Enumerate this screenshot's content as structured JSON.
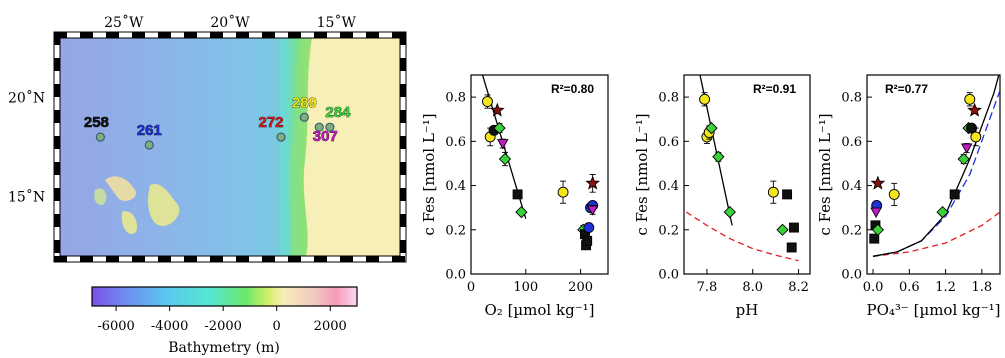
{
  "map": {
    "lon_ticks": [
      "25˚W",
      "20˚W",
      "15˚W"
    ],
    "lat_ticks": [
      "20˚N",
      "15˚N"
    ],
    "stations": [
      {
        "name": "258",
        "color": "#111111",
        "lon": -26.1,
        "lat": 18.0
      },
      {
        "name": "261",
        "color": "#1f2fd6",
        "lon": -23.8,
        "lat": 17.6
      },
      {
        "name": "272",
        "color": "#d61a1a",
        "lon": -17.6,
        "lat": 18.0
      },
      {
        "name": "289",
        "color": "#f2e21a",
        "lon": -16.5,
        "lat": 19.0
      },
      {
        "name": "307",
        "color": "#c21ac2",
        "lon": -15.8,
        "lat": 18.5
      },
      {
        "name": "284",
        "color": "#3ad23a",
        "lon": -15.3,
        "lat": 18.5
      }
    ],
    "colorbar": {
      "ticks": [
        "-6000",
        "-4000",
        "-2000",
        "0",
        "2000"
      ],
      "label": "Bathymetry (m)",
      "min": -6900,
      "max": 3000
    }
  },
  "chart_data": [
    {
      "type": "scatter",
      "xlabel": "O₂ [µmol kg⁻¹]",
      "ylabel": "c Fes [nmol L⁻¹]",
      "r2": "R²=0.80",
      "xlim": [
        0,
        250
      ],
      "ylim": [
        0,
        0.9
      ],
      "xticks": [
        "0",
        "100",
        "200"
      ],
      "yticks": [
        "0.0",
        "0.2",
        "0.4",
        "0.6",
        "0.8"
      ],
      "points": [
        {
          "x": 30,
          "y": 0.78,
          "s": "circle",
          "c": "#f5e61c",
          "e": 0.03
        },
        {
          "x": 35,
          "y": 0.62,
          "s": "circle",
          "c": "#f5e61c",
          "e": 0.04
        },
        {
          "x": 42,
          "y": 0.65,
          "s": "circle",
          "c": "#111111",
          "e": 0.02
        },
        {
          "x": 48,
          "y": 0.74,
          "s": "star",
          "c": "#8b1010",
          "e": 0
        },
        {
          "x": 52,
          "y": 0.66,
          "s": "diamond",
          "c": "#3ad23a",
          "e": 0.02
        },
        {
          "x": 58,
          "y": 0.59,
          "s": "tri",
          "c": "#c21ac2",
          "e": 0.02
        },
        {
          "x": 62,
          "y": 0.52,
          "s": "diamond",
          "c": "#3ad23a",
          "e": 0.03
        },
        {
          "x": 85,
          "y": 0.36,
          "s": "square",
          "c": "#111111",
          "e": 0
        },
        {
          "x": 92,
          "y": 0.28,
          "s": "diamond",
          "c": "#3ad23a",
          "e": 0
        },
        {
          "x": 168,
          "y": 0.37,
          "s": "circle",
          "c": "#f5e61c",
          "e": 0.05
        },
        {
          "x": 205,
          "y": 0.2,
          "s": "diamond",
          "c": "#3ad23a",
          "e": 0.02
        },
        {
          "x": 208,
          "y": 0.18,
          "s": "square",
          "c": "#111111",
          "e": 0
        },
        {
          "x": 210,
          "y": 0.13,
          "s": "square",
          "c": "#111111",
          "e": 0
        },
        {
          "x": 212,
          "y": 0.15,
          "s": "square",
          "c": "#111111",
          "e": 0
        },
        {
          "x": 215,
          "y": 0.21,
          "s": "circle",
          "c": "#1f2fd6",
          "e": 0
        },
        {
          "x": 218,
          "y": 0.3,
          "s": "circle",
          "c": "#1f2fd6",
          "e": 0
        },
        {
          "x": 222,
          "y": 0.31,
          "s": "circle",
          "c": "#1f2fd6",
          "e": 0
        },
        {
          "x": 222,
          "y": 0.29,
          "s": "tri",
          "c": "#c21ac2",
          "e": 0.02
        },
        {
          "x": 222,
          "y": 0.41,
          "s": "star",
          "c": "#8b1010",
          "e": 0.04
        }
      ],
      "fit": {
        "x": [
          15,
          100
        ],
        "y": [
          0.95,
          0.25
        ]
      }
    },
    {
      "type": "scatter",
      "xlabel": "pH",
      "ylabel": "c Fes [nmol L⁻¹]",
      "r2": "R²=0.91",
      "xlim": [
        7.7,
        8.25
      ],
      "ylim": [
        0,
        0.9
      ],
      "xticks": [
        "7.8",
        "8.0",
        "8.2"
      ],
      "yticks": [
        "0.0",
        "0.2",
        "0.4",
        "0.6",
        "0.8"
      ],
      "points": [
        {
          "x": 7.79,
          "y": 0.79,
          "s": "circle",
          "c": "#f5e61c",
          "e": 0.03
        },
        {
          "x": 7.8,
          "y": 0.62,
          "s": "circle",
          "c": "#f5e61c",
          "e": 0.03
        },
        {
          "x": 7.81,
          "y": 0.64,
          "s": "circle",
          "c": "#f5e61c",
          "e": 0.03
        },
        {
          "x": 7.82,
          "y": 0.66,
          "s": "diamond",
          "c": "#3ad23a",
          "e": 0
        },
        {
          "x": 7.85,
          "y": 0.53,
          "s": "diamond",
          "c": "#3ad23a",
          "e": 0.02
        },
        {
          "x": 7.9,
          "y": 0.28,
          "s": "diamond",
          "c": "#3ad23a",
          "e": 0
        },
        {
          "x": 8.09,
          "y": 0.37,
          "s": "circle",
          "c": "#f5e61c",
          "e": 0.05
        },
        {
          "x": 8.15,
          "y": 0.36,
          "s": "square",
          "c": "#111111",
          "e": 0
        },
        {
          "x": 8.13,
          "y": 0.2,
          "s": "diamond",
          "c": "#3ad23a",
          "e": 0
        },
        {
          "x": 8.18,
          "y": 0.21,
          "s": "square",
          "c": "#111111",
          "e": 0
        },
        {
          "x": 8.17,
          "y": 0.12,
          "s": "square",
          "c": "#111111",
          "e": 0
        }
      ],
      "fit": {
        "x": [
          7.77,
          7.91
        ],
        "y": [
          0.9,
          0.22
        ]
      },
      "dashed_red": {
        "x": [
          7.71,
          7.8,
          7.9,
          8.0,
          8.1,
          8.2
        ],
        "y": [
          0.28,
          0.22,
          0.16,
          0.115,
          0.085,
          0.06
        ]
      }
    },
    {
      "type": "scatter",
      "xlabel": "PO₄³⁻ [µmol kg⁻¹]",
      "ylabel": "c Fes [nmol L⁻¹]",
      "r2": "R²=0.77",
      "xlim": [
        -0.1,
        2.1
      ],
      "ylim": [
        0,
        0.9
      ],
      "xticks": [
        "0.0",
        "0.6",
        "1.2",
        "1.8"
      ],
      "yticks": [
        "0.0",
        "0.2",
        "0.4",
        "0.6",
        "0.8"
      ],
      "points": [
        {
          "x": 0.02,
          "y": 0.16,
          "s": "square",
          "c": "#111111",
          "e": 0
        },
        {
          "x": 0.04,
          "y": 0.22,
          "s": "square",
          "c": "#111111",
          "e": 0
        },
        {
          "x": 0.06,
          "y": 0.31,
          "s": "circle",
          "c": "#1f2fd6",
          "e": 0
        },
        {
          "x": 0.05,
          "y": 0.28,
          "s": "tri",
          "c": "#c21ac2",
          "e": 0
        },
        {
          "x": 0.08,
          "y": 0.41,
          "s": "star",
          "c": "#8b1010",
          "e": 0
        },
        {
          "x": 0.08,
          "y": 0.2,
          "s": "diamond",
          "c": "#3ad23a",
          "e": 0
        },
        {
          "x": 0.35,
          "y": 0.36,
          "s": "circle",
          "c": "#f5e61c",
          "e": 0.05
        },
        {
          "x": 1.15,
          "y": 0.28,
          "s": "diamond",
          "c": "#3ad23a",
          "e": 0
        },
        {
          "x": 1.35,
          "y": 0.36,
          "s": "square",
          "c": "#111111",
          "e": 0
        },
        {
          "x": 1.5,
          "y": 0.52,
          "s": "diamond",
          "c": "#3ad23a",
          "e": 0.02
        },
        {
          "x": 1.55,
          "y": 0.57,
          "s": "tri",
          "c": "#c21ac2",
          "e": 0.02
        },
        {
          "x": 1.58,
          "y": 0.66,
          "s": "diamond",
          "c": "#3ad23a",
          "e": 0
        },
        {
          "x": 1.6,
          "y": 0.79,
          "s": "circle",
          "c": "#f5e61c",
          "e": 0.03
        },
        {
          "x": 1.63,
          "y": 0.66,
          "s": "circle",
          "c": "#111111",
          "e": 0
        },
        {
          "x": 1.68,
          "y": 0.74,
          "s": "star",
          "c": "#8b1010",
          "e": 0
        },
        {
          "x": 1.7,
          "y": 0.62,
          "s": "circle",
          "c": "#f5e61c",
          "e": 0.04
        }
      ],
      "fit": {
        "x": [
          0.0,
          0.4,
          0.8,
          1.2,
          1.6,
          2.0,
          2.1
        ],
        "y": [
          0.08,
          0.1,
          0.15,
          0.27,
          0.52,
          0.82,
          0.92
        ]
      },
      "dashed_blue": {
        "x": [
          0.0,
          0.4,
          0.8,
          1.2,
          1.6,
          2.1
        ],
        "y": [
          0.08,
          0.1,
          0.15,
          0.26,
          0.45,
          0.83
        ]
      },
      "dashed_red": {
        "x": [
          0.0,
          0.6,
          1.2,
          1.8,
          2.1
        ],
        "y": [
          0.08,
          0.1,
          0.14,
          0.22,
          0.28
        ]
      }
    }
  ]
}
